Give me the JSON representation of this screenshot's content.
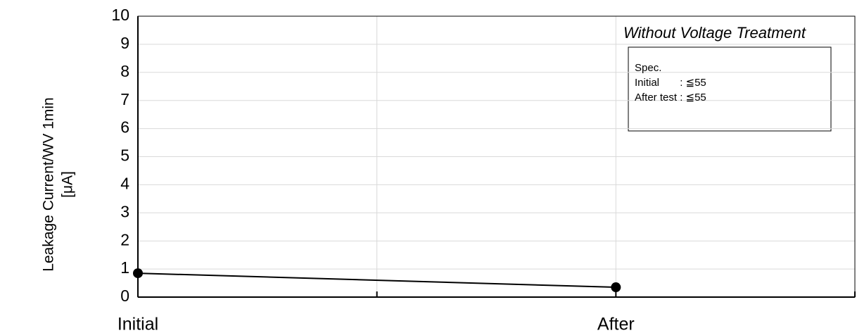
{
  "chart_data": {
    "type": "line",
    "title": "Without Voltage Treatment",
    "ylabel": [
      "Leakage Current/WV 1min",
      "[μA]"
    ],
    "categories": [
      "Initial",
      "After"
    ],
    "values": [
      0.85,
      0.35
    ],
    "color": "#000000",
    "ylim": [
      0,
      10
    ],
    "yticks": [
      0,
      1,
      2,
      3,
      4,
      5,
      6,
      7,
      8,
      9,
      10
    ],
    "grid": true,
    "annotation": [
      "Spec.",
      "Initial       : ≦55",
      "After test : ≦55"
    ]
  }
}
